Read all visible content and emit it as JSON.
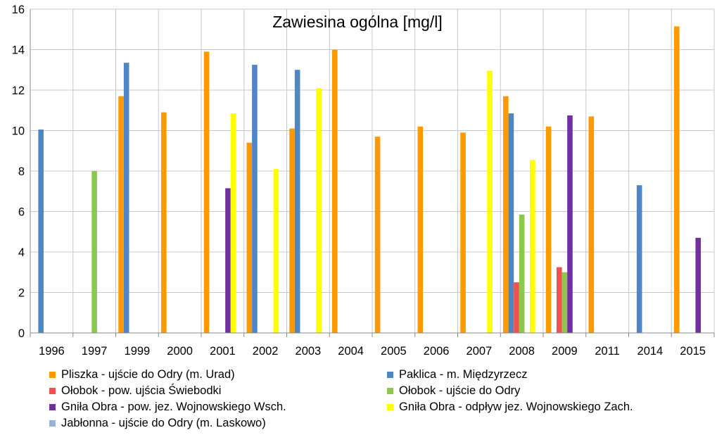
{
  "chart_data": {
    "type": "bar",
    "title": "Zawiesina ogólna [mg/l]",
    "xlabel": "",
    "ylabel": "",
    "ylim": [
      0,
      16
    ],
    "yticks": [
      "0",
      "2",
      "4",
      "6",
      "8",
      "10",
      "12",
      "14",
      "16"
    ],
    "grid": true,
    "legend_position": "bottom",
    "categories": [
      "1996",
      "1997",
      "1999",
      "2000",
      "2001",
      "2002",
      "2003",
      "2004",
      "2005",
      "2006",
      "2007",
      "2008",
      "2009",
      "2011",
      "2014",
      "2015"
    ],
    "series": [
      {
        "name": "Pliszka - ujście do Odry (m. Urad)",
        "color": "#FF9900",
        "values": [
          null,
          null,
          11.7,
          10.9,
          13.9,
          9.4,
          10.1,
          14.0,
          9.7,
          10.2,
          9.9,
          11.7,
          10.2,
          10.7,
          null,
          15.15
        ]
      },
      {
        "name": "Paklica - m. Międzyrzecz",
        "color": "#4F86C6",
        "values": [
          10.05,
          null,
          13.35,
          null,
          null,
          13.25,
          13.0,
          null,
          null,
          null,
          null,
          10.85,
          null,
          null,
          7.3,
          null
        ]
      },
      {
        "name": "Ołobok - pow. ujścia Świebodki",
        "color": "#F05050",
        "values": [
          null,
          null,
          null,
          null,
          null,
          null,
          null,
          null,
          null,
          null,
          null,
          2.5,
          3.25,
          null,
          null,
          null
        ]
      },
      {
        "name": "Ołobok - ujście do Odry",
        "color": "#8CC84B",
        "values": [
          null,
          8.0,
          null,
          null,
          null,
          null,
          null,
          null,
          null,
          null,
          null,
          5.85,
          3.0,
          null,
          null,
          null
        ]
      },
      {
        "name": "Gniła Obra - pow. jez. Wojnowskiego Wsch.",
        "color": "#7030A0",
        "values": [
          null,
          null,
          null,
          null,
          7.15,
          null,
          null,
          null,
          null,
          null,
          null,
          null,
          10.75,
          null,
          null,
          4.7
        ]
      },
      {
        "name": "Gniła Obra - odpływ jez. Wojnowskiego Zach.",
        "color": "#FFFF00",
        "values": [
          null,
          null,
          null,
          null,
          10.85,
          8.1,
          12.1,
          null,
          null,
          null,
          12.95,
          8.55,
          null,
          null,
          null,
          null
        ]
      },
      {
        "name": "Jabłonna - ujście do Odry (m. Laskowo)",
        "color": "#95B3D7",
        "values": [
          null,
          null,
          null,
          null,
          null,
          null,
          null,
          null,
          null,
          null,
          null,
          null,
          null,
          null,
          null,
          null
        ]
      }
    ]
  }
}
